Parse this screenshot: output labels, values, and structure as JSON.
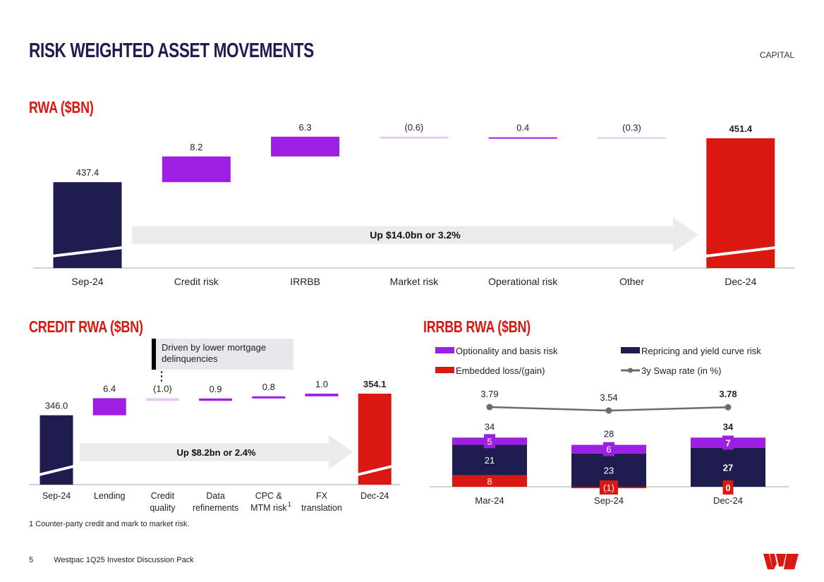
{
  "header": {
    "title": "RISK WEIGHTED ASSET MOVEMENTS",
    "section": "CAPITAL"
  },
  "colors": {
    "navy": "#1f1c4f",
    "purple": "#9d1fe3",
    "light_purple": "#e7c8f3",
    "red": "#da1710",
    "arrow": "#ebebee",
    "grey_line": "#6b6b6b"
  },
  "chart_data": [
    {
      "type": "bar",
      "subtype": "waterfall",
      "title": "RWA ($BN)",
      "categories": [
        "Sep-24",
        "Credit risk",
        "IRRBB",
        "Market risk",
        "Operational risk",
        "Other",
        "Dec-24"
      ],
      "values": [
        437.4,
        8.2,
        6.3,
        -0.6,
        0.4,
        -0.3,
        451.4
      ],
      "value_labels": [
        "437.4",
        "8.2",
        "6.3",
        "(0.6)",
        "0.4",
        "(0.3)",
        "451.4"
      ],
      "annotation": "Up $14.0bn or 3.2%"
    },
    {
      "type": "bar",
      "subtype": "waterfall",
      "title": "CREDIT RWA ($BN)",
      "categories": [
        "Sep-24",
        "Lending",
        "Credit quality",
        "Data refinements",
        "CPC & MTM risk",
        "FX translation",
        "Dec-24"
      ],
      "category_lines": [
        [
          "Sep-24"
        ],
        [
          "Lending"
        ],
        [
          "Credit",
          "quality"
        ],
        [
          "Data",
          "refinements"
        ],
        [
          "CPC &",
          "MTM risk"
        ],
        [
          "FX",
          "translation"
        ],
        [
          "Dec-24"
        ]
      ],
      "footnote_marker": "1",
      "values": [
        346.0,
        6.4,
        -1.0,
        0.9,
        0.8,
        1.0,
        354.1
      ],
      "value_labels": [
        "346.0",
        "6.4",
        "(1.0)",
        "0.9",
        "0.8",
        "1.0",
        "354.1"
      ],
      "annotation": "Up $8.2bn or 2.4%",
      "callout": "Driven by lower mortgage delinquencies"
    },
    {
      "type": "bar",
      "subtype": "stacked_with_line",
      "title": "IRRBB RWA ($BN)",
      "categories": [
        "Mar-24",
        "Sep-24",
        "Dec-24"
      ],
      "series": [
        {
          "name": "Embedded loss/(gain)",
          "values": [
            8,
            -1,
            0
          ],
          "labels": [
            "8",
            "(1)",
            "0"
          ]
        },
        {
          "name": "Repricing and yield curve risk",
          "values": [
            21,
            23,
            27
          ],
          "labels": [
            "21",
            "23",
            "27"
          ]
        },
        {
          "name": "Optionality and basis risk",
          "values": [
            5,
            6,
            7
          ],
          "labels": [
            "5",
            "6",
            "7"
          ]
        }
      ],
      "totals": [
        "34",
        "28",
        "34"
      ],
      "line": {
        "name": "3y Swap rate (in %)",
        "values": [
          3.79,
          3.54,
          3.78
        ],
        "labels": [
          "3.79",
          "3.54",
          "3.78"
        ]
      }
    }
  ],
  "footnote": "1 Counter-party credit and mark to market risk.",
  "footer": {
    "page": "5",
    "text": "Westpac 1Q25 Investor Discussion Pack"
  }
}
